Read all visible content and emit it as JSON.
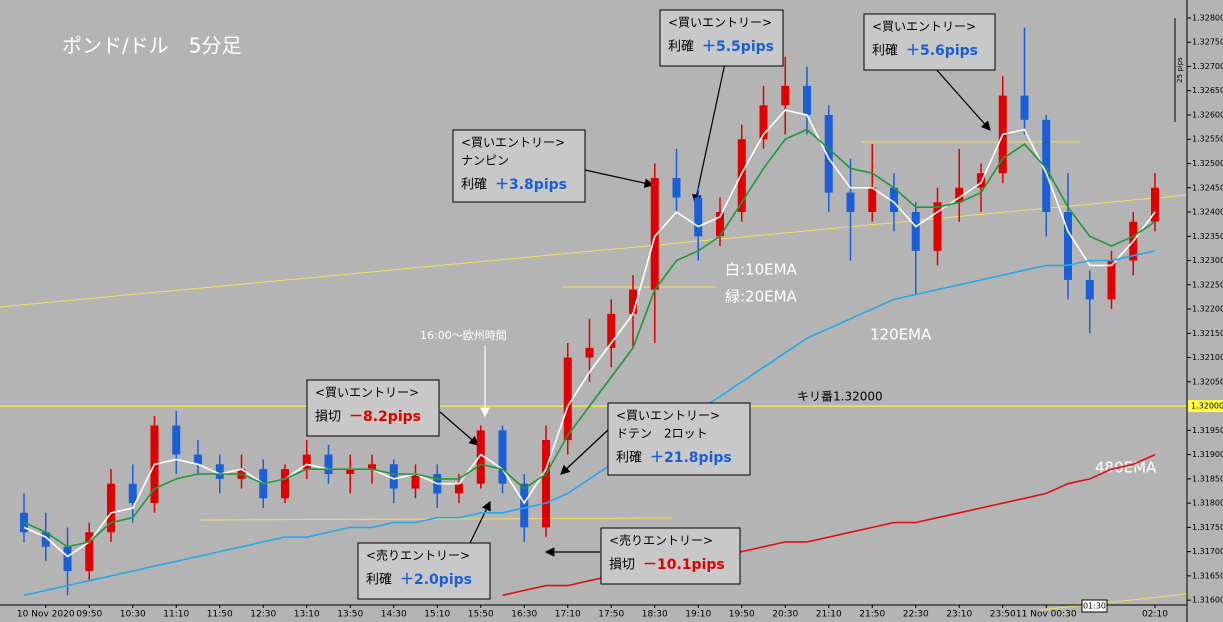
{
  "chart_data": {
    "type": "candlestick",
    "title": "ポンド/ドル　5分足",
    "categories": [
      null,
      "10 Nov 2020",
      null,
      "09:50",
      null,
      "10:30",
      null,
      "11:10",
      null,
      "11:50",
      null,
      "12:30",
      null,
      "13:10",
      null,
      "13:50",
      null,
      "14:30",
      null,
      "15:10",
      null,
      "15:50",
      null,
      "16:30",
      null,
      "17:10",
      null,
      "17:50",
      null,
      "18:30",
      null,
      "19:10",
      null,
      "19:50",
      null,
      "20:30",
      null,
      "21:10",
      null,
      "21:50",
      null,
      "22:30",
      null,
      "23:10",
      null,
      "23:50",
      null,
      "11 Nov 00:30",
      null,
      null,
      null,
      null,
      "02:10"
    ],
    "open": [
      1.3178,
      1.3174,
      1.3171,
      1.3166,
      1.3174,
      1.3184,
      1.318,
      1.3196,
      1.319,
      1.3188,
      1.3185,
      1.3187,
      1.3181,
      1.3187,
      1.319,
      1.3186,
      1.3187,
      1.3188,
      1.3183,
      1.3186,
      1.3182,
      1.3184,
      1.3195,
      1.3184,
      1.3175,
      1.3193,
      1.321,
      1.3212,
      1.3219,
      1.3224,
      1.3247,
      1.3243,
      1.3235,
      1.324,
      1.3255,
      1.3262,
      1.3266,
      1.326,
      1.3244,
      1.324,
      1.3245,
      1.324,
      1.3232,
      1.3242,
      1.3245,
      1.3248,
      1.3264,
      1.3259,
      1.324,
      1.3226,
      1.3222,
      1.323,
      1.3238
    ],
    "high": [
      1.3182,
      1.3178,
      1.3175,
      1.3176,
      1.3187,
      1.3188,
      1.3198,
      1.3199,
      1.3193,
      1.319,
      1.319,
      1.3189,
      1.3188,
      1.3193,
      1.3192,
      1.319,
      1.319,
      1.3189,
      1.3188,
      1.3188,
      1.3186,
      1.3196,
      1.3196,
      1.3186,
      1.3196,
      1.3213,
      1.3218,
      1.3222,
      1.3227,
      1.325,
      1.3253,
      1.3245,
      1.3243,
      1.3258,
      1.3266,
      1.3272,
      1.327,
      1.3262,
      1.3251,
      1.3254,
      1.3248,
      1.3242,
      1.3245,
      1.3253,
      1.325,
      1.3268,
      1.3278,
      1.326,
      1.3248,
      1.3228,
      1.3232,
      1.324,
      1.3248
    ],
    "low": [
      1.3172,
      1.3168,
      1.3161,
      1.3164,
      1.3172,
      1.3176,
      1.3178,
      1.3186,
      1.3186,
      1.3182,
      1.3183,
      1.3179,
      1.318,
      1.3185,
      1.3184,
      1.3182,
      1.3184,
      1.318,
      1.3181,
      1.3179,
      1.318,
      1.3183,
      1.3182,
      1.3172,
      1.3173,
      1.319,
      1.3205,
      1.3208,
      1.3212,
      1.3213,
      1.324,
      1.323,
      1.3233,
      1.3238,
      1.3253,
      1.3256,
      1.3256,
      1.324,
      1.323,
      1.3238,
      1.3236,
      1.3223,
      1.3229,
      1.3238,
      1.324,
      1.3246,
      1.3256,
      1.3235,
      1.3222,
      1.3215,
      1.322,
      1.3227,
      1.3236
    ],
    "close": [
      1.3174,
      1.3171,
      1.3166,
      1.3174,
      1.3184,
      1.318,
      1.3196,
      1.319,
      1.3188,
      1.3185,
      1.3187,
      1.3181,
      1.3187,
      1.319,
      1.3186,
      1.3187,
      1.3188,
      1.3183,
      1.3186,
      1.3182,
      1.3184,
      1.3195,
      1.3184,
      1.3175,
      1.3193,
      1.321,
      1.3212,
      1.3219,
      1.3224,
      1.3247,
      1.3243,
      1.3235,
      1.324,
      1.3255,
      1.3262,
      1.3266,
      1.326,
      1.3244,
      1.324,
      1.3245,
      1.324,
      1.3232,
      1.3242,
      1.3245,
      1.3248,
      1.3264,
      1.3259,
      1.324,
      1.3226,
      1.3222,
      1.323,
      1.3238,
      1.3245
    ],
    "up_color": "#e00000",
    "down_color": "#1a5fd6",
    "series": [
      {
        "color": "#ffffff",
        "values": [
          1.3175,
          1.3173,
          1.3169,
          1.3172,
          1.3178,
          1.3179,
          1.3188,
          1.3189,
          1.3188,
          1.3186,
          1.3187,
          1.3184,
          1.3185,
          1.3188,
          1.3187,
          1.3187,
          1.3187,
          1.3185,
          1.3186,
          1.3184,
          1.3184,
          1.319,
          1.3187,
          1.318,
          1.3187,
          1.32,
          1.3207,
          1.3213,
          1.3219,
          1.3235,
          1.324,
          1.3237,
          1.3239,
          1.3248,
          1.3256,
          1.3261,
          1.326,
          1.3251,
          1.3245,
          1.3245,
          1.3242,
          1.3237,
          1.324,
          1.3243,
          1.3246,
          1.3256,
          1.3257,
          1.3248,
          1.3236,
          1.3229,
          1.3229,
          1.3234,
          1.324
        ]
      },
      {
        "color": "#23973a",
        "values": [
          1.3176,
          1.3174,
          1.3171,
          1.3172,
          1.3176,
          1.3177,
          1.3183,
          1.3185,
          1.3186,
          1.3186,
          1.3186,
          1.3184,
          1.3185,
          1.3187,
          1.3187,
          1.3187,
          1.3187,
          1.3186,
          1.3186,
          1.3185,
          1.3185,
          1.3188,
          1.3187,
          1.3183,
          1.3186,
          1.3194,
          1.32,
          1.3206,
          1.3212,
          1.3224,
          1.323,
          1.3232,
          1.3235,
          1.3242,
          1.3249,
          1.3255,
          1.3257,
          1.3253,
          1.3249,
          1.3248,
          1.3245,
          1.3241,
          1.3241,
          1.3242,
          1.3244,
          1.3251,
          1.3254,
          1.3249,
          1.3241,
          1.3235,
          1.3233,
          1.3235,
          1.3238
        ]
      },
      {
        "color": "#2aa8e6",
        "values": [
          1.3161,
          1.3162,
          1.3163,
          1.3164,
          1.3165,
          1.3166,
          1.3167,
          1.3168,
          1.3169,
          1.317,
          1.3171,
          1.3172,
          1.3173,
          1.3173,
          1.3174,
          1.3175,
          1.3175,
          1.3176,
          1.3176,
          1.3177,
          1.3177,
          1.3178,
          1.3178,
          1.3179,
          1.318,
          1.3182,
          1.3185,
          1.3188,
          1.3191,
          1.3194,
          1.3197,
          1.3199,
          1.3202,
          1.3205,
          1.3208,
          1.3211,
          1.3214,
          1.3216,
          1.3218,
          1.322,
          1.3222,
          1.3223,
          1.3224,
          1.3225,
          1.3226,
          1.3227,
          1.3228,
          1.3229,
          1.3229,
          1.323,
          1.323,
          1.3231,
          1.3232
        ]
      },
      {
        "color": "#e01010",
        "values": [
          null,
          null,
          null,
          null,
          null,
          null,
          null,
          null,
          null,
          null,
          null,
          null,
          null,
          null,
          null,
          null,
          null,
          null,
          null,
          null,
          null,
          null,
          1.3161,
          1.3162,
          1.3163,
          1.3163,
          1.3164,
          1.3165,
          1.3166,
          1.3167,
          1.3168,
          1.3168,
          1.3169,
          1.317,
          1.3171,
          1.3172,
          1.3172,
          1.3173,
          1.3174,
          1.3175,
          1.3176,
          1.3176,
          1.3177,
          1.3178,
          1.3179,
          1.318,
          1.3181,
          1.3182,
          1.3184,
          1.3185,
          1.3187,
          1.3188,
          1.319
        ]
      }
    ],
    "ylim": [
      1.3159,
      1.32837
    ],
    "yticks": [
      {
        "value": 1.316,
        "label": "1.31600"
      },
      {
        "value": 1.3165,
        "label": "1.31650"
      },
      {
        "value": 1.317,
        "label": "1.31700"
      },
      {
        "value": 1.3175,
        "label": "1.31750"
      },
      {
        "value": 1.318,
        "label": "1.31800"
      },
      {
        "value": 1.3185,
        "label": "1.31850"
      },
      {
        "value": 1.319,
        "label": "1.31900"
      },
      {
        "value": 1.3195,
        "label": "1.31950"
      },
      {
        "value": 1.3205,
        "label": "1.32050"
      },
      {
        "value": 1.321,
        "label": "1.32100"
      },
      {
        "value": 1.3215,
        "label": "1.32150"
      },
      {
        "value": 1.322,
        "label": "1.32200"
      },
      {
        "value": 1.3225,
        "label": "1.32250"
      },
      {
        "value": 1.323,
        "label": "1.32300"
      },
      {
        "value": 1.3235,
        "label": "1.32350"
      },
      {
        "value": 1.324,
        "label": "1.32400"
      },
      {
        "value": 1.3245,
        "label": "1.32450"
      },
      {
        "value": 1.325,
        "label": "1.32500"
      },
      {
        "value": 1.3255,
        "label": "1.32550"
      },
      {
        "value": 1.326,
        "label": "1.32600"
      },
      {
        "value": 1.3265,
        "label": "1.32650"
      },
      {
        "value": 1.327,
        "label": "1.32700"
      },
      {
        "value": 1.3275,
        "label": "1.32750"
      },
      {
        "value": 1.328,
        "label": "1.32800"
      }
    ],
    "level": {
      "value": 1.32,
      "label": "1.32000",
      "color": "#ffff40"
    },
    "time_marker": "01:30",
    "range_note": "25 pips",
    "annotations": {
      "euro_session": "16:00～欧州時間",
      "ema10": "白:10EMA",
      "ema20": "緑:20EMA",
      "ema120": "120EMA",
      "ema480": "480EMA",
      "kiriban": "キリ番1.32000"
    },
    "entry_boxes": [
      {
        "lines": [
          "<買いエントリー>"
        ],
        "label": "利確",
        "result": "＋5.5pips",
        "result_color": "#1a5fd6"
      },
      {
        "lines": [
          "<買いエントリー>"
        ],
        "label": "利確",
        "result": "＋5.6pips",
        "result_color": "#1a5fd6"
      },
      {
        "lines": [
          "<買いエントリー>",
          "ナンピン"
        ],
        "label": "利確",
        "result": "＋3.8pips",
        "result_color": "#1a5fd6"
      },
      {
        "lines": [
          "<買いエントリー>"
        ],
        "label": "損切",
        "result": "－8.2pips",
        "result_color": "#e00000"
      },
      {
        "lines": [
          "<買いエントリー>",
          "ドテン　2ロット"
        ],
        "label": "利確",
        "result": "＋21.8pips",
        "result_color": "#1a5fd6"
      },
      {
        "lines": [
          "<売りエントリー>"
        ],
        "label": "利確",
        "result": "＋2.0pips",
        "result_color": "#1a5fd6"
      },
      {
        "lines": [
          "<売りエントリー>"
        ],
        "label": "損切",
        "result": "－10.1pips",
        "result_color": "#e00000"
      }
    ]
  }
}
